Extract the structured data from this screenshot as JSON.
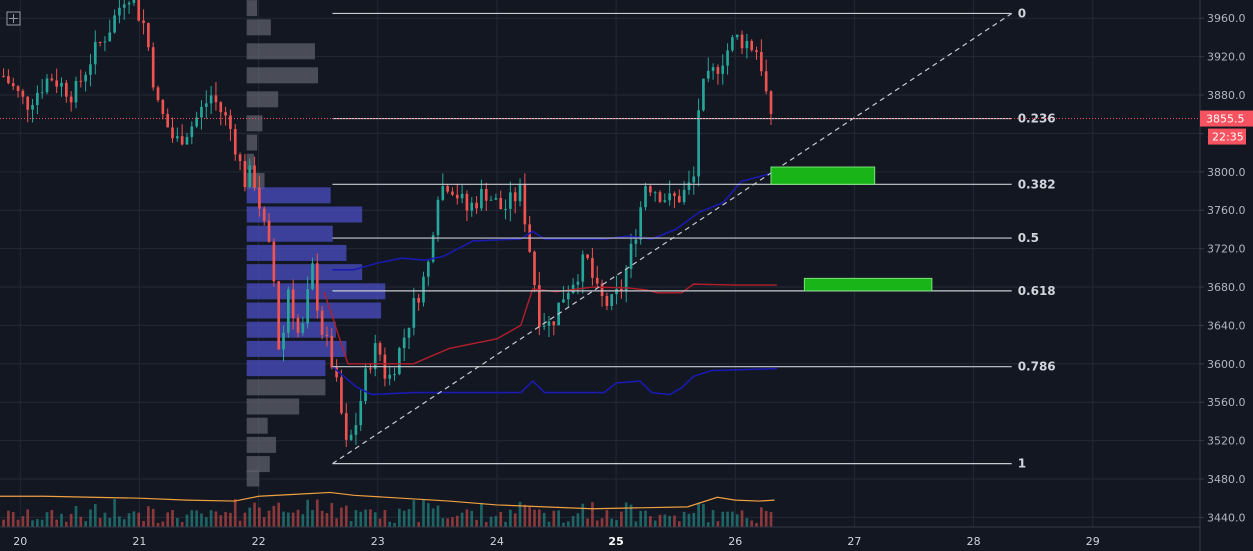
{
  "colors": {
    "background": "#131722",
    "grid": "#232834",
    "up": "#26a69a",
    "down": "#ef5350",
    "fib_line": "#c9cbd1",
    "current_price": "#f7525f",
    "vpvr_value_area": "#4b4fc4",
    "vpvr_outside": "#5d606b",
    "zone": "#18b418",
    "ma_volume": "#f0a040",
    "blue_line": "#1a1ab0",
    "red_line": "#b21f2a"
  },
  "icons": {
    "top_left": "crosshair-box-icon"
  },
  "chart_data": {
    "type": "candlestick",
    "x_axis": {
      "labels": [
        "20",
        "21",
        "22",
        "23",
        "24",
        "25",
        "26",
        "27",
        "28",
        "29"
      ],
      "bold_label": "25",
      "range": [
        19.83,
        29.9
      ]
    },
    "y_axis": {
      "labels": [
        "3960.0",
        "3920.0",
        "3880.0",
        "3840.0",
        "3800.0",
        "3760.0",
        "3720.0",
        "3680.0",
        "3640.0",
        "3600.0",
        "3560.0",
        "3520.0",
        "3480.0",
        "3440.0"
      ],
      "values": [
        3960,
        3920,
        3880,
        3840,
        3800,
        3760,
        3720,
        3680,
        3640,
        3600,
        3560,
        3520,
        3480,
        3440
      ],
      "range": [
        3430,
        3979
      ]
    },
    "current_price": {
      "value": 3855.5,
      "label": "3855.5",
      "countdown": "22:35"
    },
    "fibonacci": {
      "x_start": 22.62,
      "x_end": 28.32,
      "levels": [
        {
          "ratio": "0",
          "price": 3965
        },
        {
          "ratio": "0.236",
          "price": 3855.5
        },
        {
          "ratio": "0.382",
          "price": 3787
        },
        {
          "ratio": "0.5",
          "price": 3731
        },
        {
          "ratio": "0.618",
          "price": 3676
        },
        {
          "ratio": "0.786",
          "price": 3597
        },
        {
          "ratio": "1",
          "price": 3496
        }
      ]
    },
    "trend_line": {
      "x1": 22.62,
      "y1": 3496,
      "x2": 28.32,
      "y2": 3965
    },
    "zones": [
      {
        "x1": 26.3,
        "x2": 27.17,
        "y_top": 3805,
        "y_bottom": 3787
      },
      {
        "x1": 26.58,
        "x2": 27.65,
        "y_top": 3689,
        "y_bottom": 3676
      }
    ],
    "blue_line": [
      [
        22.62,
        3698
      ],
      [
        22.8,
        3698
      ],
      [
        23.0,
        3705
      ],
      [
        23.2,
        3710
      ],
      [
        23.4,
        3708
      ],
      [
        23.55,
        3712
      ],
      [
        23.8,
        3728
      ],
      [
        24.2,
        3730
      ],
      [
        24.3,
        3738
      ],
      [
        24.4,
        3730
      ],
      [
        24.9,
        3730
      ],
      [
        25.1,
        3733
      ],
      [
        25.3,
        3730
      ],
      [
        25.5,
        3740
      ],
      [
        25.7,
        3758
      ],
      [
        25.9,
        3768
      ],
      [
        26.05,
        3790
      ],
      [
        26.35,
        3800
      ]
    ],
    "blue_line_low": [
      [
        22.62,
        3597
      ],
      [
        22.82,
        3576
      ],
      [
        22.95,
        3568
      ],
      [
        23.3,
        3570
      ],
      [
        24.2,
        3570
      ],
      [
        24.3,
        3582
      ],
      [
        24.4,
        3570
      ],
      [
        24.9,
        3570
      ],
      [
        25.0,
        3580
      ],
      [
        25.2,
        3582
      ],
      [
        25.3,
        3570
      ],
      [
        25.45,
        3568
      ],
      [
        25.55,
        3575
      ],
      [
        25.65,
        3587
      ],
      [
        25.8,
        3593
      ],
      [
        26.35,
        3595
      ]
    ],
    "red_line": [
      [
        22.55,
        3675
      ],
      [
        22.75,
        3600
      ],
      [
        23.0,
        3600
      ],
      [
        23.3,
        3600
      ],
      [
        23.6,
        3616
      ],
      [
        24.0,
        3626
      ],
      [
        24.2,
        3640
      ],
      [
        24.3,
        3678
      ],
      [
        24.5,
        3675
      ],
      [
        24.8,
        3680
      ],
      [
        25.1,
        3679
      ],
      [
        25.25,
        3677
      ],
      [
        25.35,
        3674
      ],
      [
        25.55,
        3674
      ],
      [
        25.65,
        3683
      ],
      [
        26.0,
        3682
      ],
      [
        26.35,
        3682
      ]
    ],
    "volume_ma": [
      [
        19.83,
        3462
      ],
      [
        20.2,
        3462
      ],
      [
        20.6,
        3461
      ],
      [
        21.0,
        3460
      ],
      [
        21.4,
        3458
      ],
      [
        21.8,
        3457
      ],
      [
        22.0,
        3462
      ],
      [
        22.3,
        3464
      ],
      [
        22.6,
        3466
      ],
      [
        22.8,
        3463
      ],
      [
        23.2,
        3460
      ],
      [
        23.6,
        3457
      ],
      [
        24.0,
        3453
      ],
      [
        24.4,
        3451
      ],
      [
        24.8,
        3449
      ],
      [
        25.2,
        3450
      ],
      [
        25.6,
        3451
      ],
      [
        25.7,
        3455
      ],
      [
        25.85,
        3461
      ],
      [
        26.0,
        3458
      ],
      [
        26.2,
        3457
      ],
      [
        26.33,
        3458
      ]
    ],
    "candle_days": [
      19.86,
      26.3
    ],
    "candles_count": 160,
    "candle_anchors": [
      [
        19.86,
        3900
      ],
      [
        20.05,
        3870
      ],
      [
        20.25,
        3900
      ],
      [
        20.45,
        3880
      ],
      [
        20.6,
        3920
      ],
      [
        20.75,
        3950
      ],
      [
        20.9,
        3990
      ],
      [
        21.05,
        3950
      ],
      [
        21.15,
        3870
      ],
      [
        21.3,
        3830
      ],
      [
        21.45,
        3850
      ],
      [
        21.6,
        3880
      ],
      [
        21.75,
        3850
      ],
      [
        21.8,
        3830
      ],
      [
        21.88,
        3790
      ],
      [
        21.95,
        3800
      ],
      [
        22.05,
        3740
      ],
      [
        22.12,
        3700
      ],
      [
        22.18,
        3600
      ],
      [
        22.25,
        3680
      ],
      [
        22.35,
        3620
      ],
      [
        22.45,
        3700
      ],
      [
        22.52,
        3640
      ],
      [
        22.6,
        3610
      ],
      [
        22.68,
        3560
      ],
      [
        22.74,
        3510
      ],
      [
        22.82,
        3540
      ],
      [
        22.92,
        3600
      ],
      [
        23.0,
        3620
      ],
      [
        23.08,
        3580
      ],
      [
        23.2,
        3620
      ],
      [
        23.3,
        3660
      ],
      [
        23.42,
        3700
      ],
      [
        23.5,
        3780
      ],
      [
        23.6,
        3790
      ],
      [
        23.75,
        3760
      ],
      [
        23.9,
        3780
      ],
      [
        24.05,
        3760
      ],
      [
        24.2,
        3780
      ],
      [
        24.3,
        3700
      ],
      [
        24.35,
        3650
      ],
      [
        24.45,
        3640
      ],
      [
        24.55,
        3670
      ],
      [
        24.65,
        3690
      ],
      [
        24.75,
        3710
      ],
      [
        24.85,
        3670
      ],
      [
        24.95,
        3660
      ],
      [
        25.05,
        3680
      ],
      [
        25.15,
        3730
      ],
      [
        25.25,
        3790
      ],
      [
        25.35,
        3780
      ],
      [
        25.45,
        3770
      ],
      [
        25.55,
        3775
      ],
      [
        25.65,
        3790
      ],
      [
        25.7,
        3880
      ],
      [
        25.8,
        3900
      ],
      [
        25.9,
        3920
      ],
      [
        26.0,
        3940
      ],
      [
        26.1,
        3935
      ],
      [
        26.2,
        3925
      ],
      [
        26.3,
        3850
      ]
    ],
    "vpvr_x_start": 21.9,
    "vpvr_bars": [
      {
        "price": 3970,
        "vol": 0.1,
        "value_area": false
      },
      {
        "price": 3950,
        "vol": 0.23,
        "value_area": false
      },
      {
        "price": 3925,
        "vol": 0.65,
        "value_area": false
      },
      {
        "price": 3900,
        "vol": 0.68,
        "value_area": false
      },
      {
        "price": 3875,
        "vol": 0.3,
        "value_area": false
      },
      {
        "price": 3850,
        "vol": 0.15,
        "value_area": false
      },
      {
        "price": 3830,
        "vol": 0.1,
        "value_area": false
      },
      {
        "price": 3810,
        "vol": 0.07,
        "value_area": false
      },
      {
        "price": 3790,
        "vol": 0.17,
        "value_area": false
      },
      {
        "price": 3775,
        "vol": 0.8,
        "value_area": true
      },
      {
        "price": 3755,
        "vol": 1.1,
        "value_area": true
      },
      {
        "price": 3735,
        "vol": 0.82,
        "value_area": true
      },
      {
        "price": 3715,
        "vol": 0.95,
        "value_area": true
      },
      {
        "price": 3695,
        "vol": 1.1,
        "value_area": true
      },
      {
        "price": 3675,
        "vol": 1.32,
        "value_area": true
      },
      {
        "price": 3655,
        "vol": 1.28,
        "value_area": true
      },
      {
        "price": 3635,
        "vol": 0.85,
        "value_area": true
      },
      {
        "price": 3615,
        "vol": 0.95,
        "value_area": true
      },
      {
        "price": 3595,
        "vol": 0.75,
        "value_area": true
      },
      {
        "price": 3575,
        "vol": 0.75,
        "value_area": false
      },
      {
        "price": 3555,
        "vol": 0.5,
        "value_area": false
      },
      {
        "price": 3535,
        "vol": 0.2,
        "value_area": false
      },
      {
        "price": 3515,
        "vol": 0.28,
        "value_area": false
      },
      {
        "price": 3495,
        "vol": 0.22,
        "value_area": false
      },
      {
        "price": 3480,
        "vol": 0.12,
        "value_area": false
      }
    ]
  }
}
